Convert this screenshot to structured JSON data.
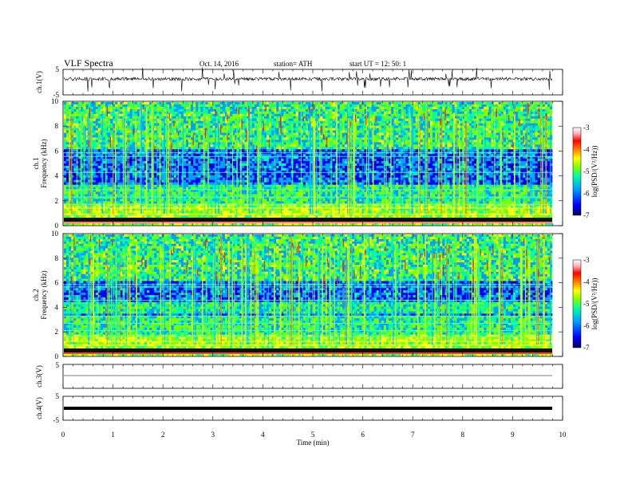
{
  "header": {
    "title": "VLF  Spectra",
    "date": "Oct. 14, 2016",
    "station": "station= ATH",
    "start": "start  UT  =    12: 50: 1"
  },
  "chart_data": {
    "type": "heatmap",
    "x_axis": {
      "label": "Time  (min)",
      "range": [
        0,
        10
      ],
      "ticks": [
        "0",
        "1",
        "2",
        "3",
        "4",
        "5",
        "6",
        "7",
        "8",
        "9",
        "10"
      ]
    },
    "panels": [
      {
        "id": "ch1_waveform",
        "type": "line",
        "ylabel": "ch.1(V)",
        "ylim": [
          -5,
          5
        ],
        "yticks": [
          "5",
          "-5"
        ],
        "description_level": "noisy signal near +0.5 V with frequent spikes"
      },
      {
        "id": "ch1_spectrogram",
        "type": "heatmap",
        "ylabel_lines": [
          "ch.1",
          "Frequency  (kHz)"
        ],
        "ylim": [
          0,
          10
        ],
        "yticks": [
          "0",
          "2",
          "4",
          "6",
          "8",
          "10"
        ],
        "colorbar": {
          "label": "log(PSD/(V²/Hz))",
          "range": [
            -7,
            -3
          ],
          "ticks": [
            "-3",
            "-4",
            "-5",
            "-6",
            "-7"
          ]
        }
      },
      {
        "id": "ch2_spectrogram",
        "type": "heatmap",
        "ylabel_lines": [
          "ch.2",
          "Frequency  (kHz)"
        ],
        "ylim": [
          0,
          10
        ],
        "yticks": [
          "0",
          "2",
          "4",
          "6",
          "8",
          "10"
        ],
        "colorbar": {
          "label": "log(PSD/(V²/Hz))",
          "range": [
            -7,
            -3
          ],
          "ticks": [
            "-3",
            "-4",
            "-5",
            "-6",
            "-7"
          ]
        }
      },
      {
        "id": "ch3_waveform",
        "type": "line",
        "ylabel": "ch.3(V)",
        "ylim": [
          -5,
          5
        ],
        "yticks": [
          "5"
        ],
        "level": 0
      },
      {
        "id": "ch4_waveform",
        "type": "line",
        "ylabel": "ch.4(V)",
        "ylim": [
          -5,
          5
        ],
        "yticks": [
          "5",
          "-5"
        ],
        "level": -1
      }
    ],
    "colormap": [
      "#000060",
      "#0000ff",
      "#00a0ff",
      "#00ffa0",
      "#80ff00",
      "#ffff00",
      "#ff8000",
      "#ff0000",
      "#ffb0b0",
      "#ffffff"
    ]
  }
}
